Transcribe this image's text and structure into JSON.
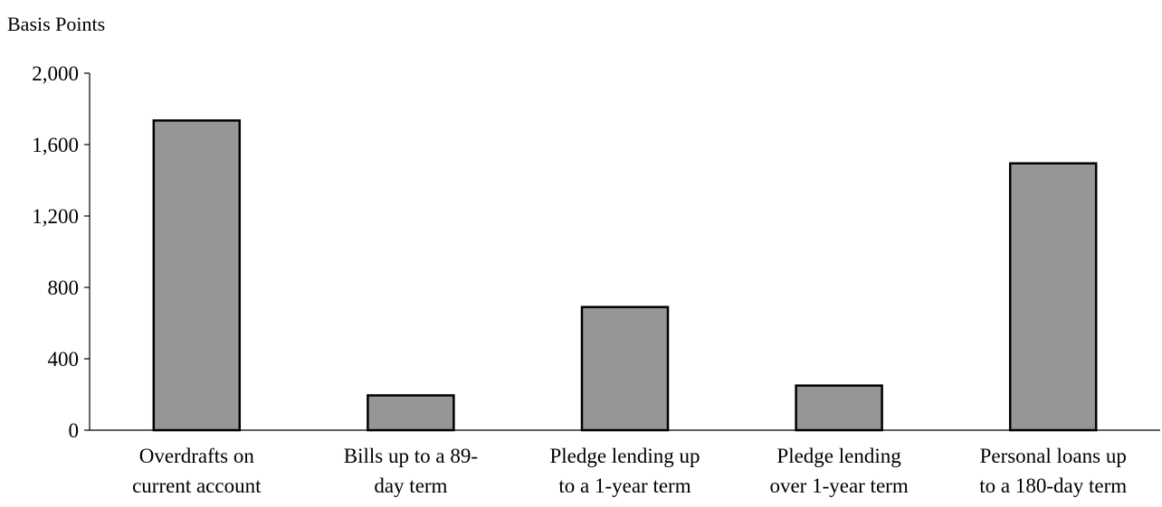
{
  "chart_data": {
    "type": "bar",
    "title": "",
    "ylabel": "Basis Points",
    "xlabel": "",
    "ylim": [
      0,
      2000
    ],
    "yticks": [
      0,
      400,
      800,
      1200,
      1600,
      2000
    ],
    "ytick_labels": [
      "0",
      "400",
      "800",
      "1,200",
      "1,600",
      "2,000"
    ],
    "categories": [
      [
        "Overdrafts on",
        "current account"
      ],
      [
        "Bills up to a 89-",
        "day term"
      ],
      [
        "Pledge lending up",
        "to a 1-year term"
      ],
      [
        "Pledge lending",
        "over 1-year term"
      ],
      [
        "Personal loans up",
        "to a 180-day term"
      ]
    ],
    "values": [
      1735,
      195,
      690,
      250,
      1495
    ],
    "bar_color": "#969696",
    "bar_stroke": "#000000",
    "grid": false,
    "legend": "none"
  }
}
